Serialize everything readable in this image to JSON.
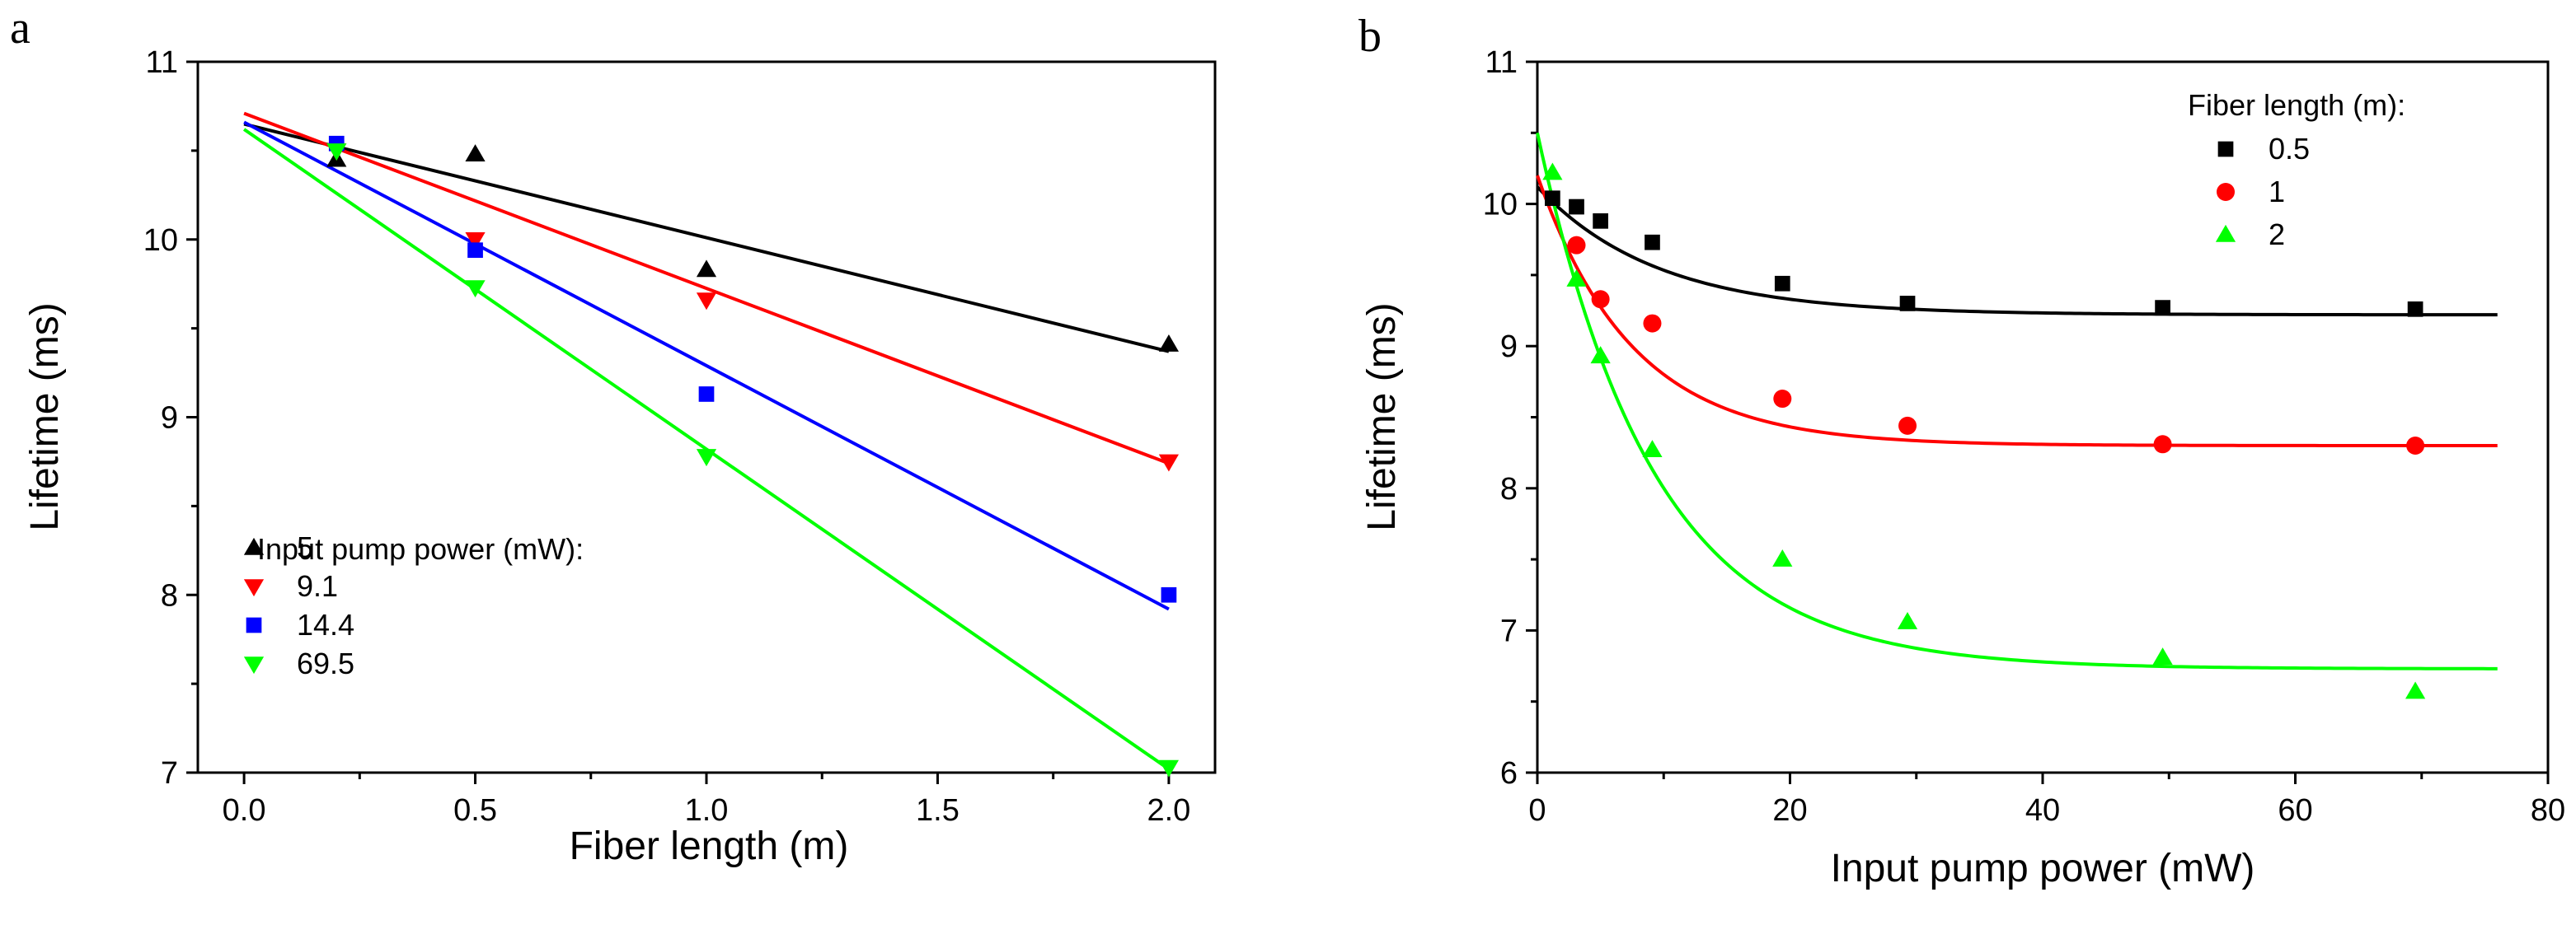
{
  "chart_data": [
    {
      "panel": "a",
      "type": "scatter",
      "title": "",
      "xlabel": "Fiber length (m)",
      "ylabel": "Lifetime (ms)",
      "xlim": [
        -0.1,
        2.1
      ],
      "ylim": [
        7,
        11
      ],
      "xticks": [
        0.0,
        0.5,
        1.0,
        1.5,
        2.0
      ],
      "xtick_labels": [
        "0.0",
        "0.5",
        "1.0",
        "1.5",
        "2.0"
      ],
      "yticks": [
        7,
        8,
        9,
        10,
        11
      ],
      "ytick_labels": [
        "7",
        "8",
        "9",
        "10",
        "11"
      ],
      "legend_title": "Input pump power (mW):",
      "legend_position": "bottom-left",
      "series": [
        {
          "name": "5",
          "color": "#000000",
          "marker": "triangle-up",
          "x": [
            0.2,
            0.5,
            1.0,
            2.0
          ],
          "y": [
            10.45,
            10.48,
            9.83,
            9.41
          ],
          "fit_x": [
            0.0,
            2.0
          ],
          "fit_y": [
            10.65,
            9.37
          ]
        },
        {
          "name": "9.1",
          "color": "#ff0000",
          "marker": "triangle-down",
          "x": [
            0.2,
            0.5,
            1.0,
            2.0
          ],
          "y": [
            10.5,
            10.0,
            9.66,
            8.75
          ],
          "fit_x": [
            0.0,
            2.0
          ],
          "fit_y": [
            10.71,
            8.74
          ]
        },
        {
          "name": "14.4",
          "color": "#0000ff",
          "marker": "square",
          "x": [
            0.2,
            0.5,
            1.0,
            2.0
          ],
          "y": [
            10.54,
            9.94,
            9.13,
            8.0
          ],
          "fit_x": [
            0.0,
            2.0
          ],
          "fit_y": [
            10.66,
            7.92
          ]
        },
        {
          "name": "69.5",
          "color": "#00ff00",
          "marker": "triangle-down",
          "x": [
            0.2,
            0.5,
            1.0,
            2.0
          ],
          "y": [
            10.5,
            9.73,
            8.78,
            7.03
          ],
          "fit_x": [
            0.0,
            2.0
          ],
          "fit_y": [
            10.62,
            7.02
          ]
        }
      ]
    },
    {
      "panel": "b",
      "type": "scatter",
      "title": "",
      "xlabel": "Input pump power (mW)",
      "ylabel": "Lifetime (ms)",
      "xlim": [
        0,
        80
      ],
      "ylim": [
        6,
        11
      ],
      "xticks": [
        0,
        20,
        40,
        60,
        80
      ],
      "xtick_labels": [
        "0",
        "20",
        "40",
        "60",
        "80"
      ],
      "yticks": [
        6,
        7,
        8,
        9,
        10,
        11
      ],
      "ytick_labels": [
        "6",
        "7",
        "8",
        "9",
        "10",
        "11"
      ],
      "legend_title": "Fiber length (m):",
      "legend_position": "top-right",
      "fit_x_range": [
        0,
        76
      ],
      "series": [
        {
          "name": "0.5",
          "color": "#000000",
          "marker": "square",
          "x": [
            1.2,
            3.1,
            5.0,
            9.1,
            19.4,
            29.3,
            49.5,
            69.5
          ],
          "y": [
            10.04,
            9.98,
            9.88,
            9.73,
            9.44,
            9.3,
            9.27,
            9.26
          ],
          "fit": {
            "y0": 9.22,
            "A": 0.9,
            "tau": 9.5
          }
        },
        {
          "name": "1",
          "color": "#ff0000",
          "marker": "circle",
          "x": [
            3.1,
            5.0,
            9.1,
            19.4,
            29.3,
            49.5,
            69.5
          ],
          "y": [
            9.71,
            9.33,
            9.16,
            8.63,
            8.44,
            8.31,
            8.3
          ],
          "fit": {
            "y0": 8.3,
            "A": 1.9,
            "tau": 7.5
          }
        },
        {
          "name": "2",
          "color": "#00ff00",
          "marker": "triangle-up",
          "x": [
            1.2,
            3.1,
            5.0,
            9.1,
            19.4,
            29.3,
            49.5,
            69.5
          ],
          "y": [
            10.22,
            9.47,
            8.93,
            8.27,
            7.5,
            7.06,
            6.81,
            6.57
          ],
          "fit": {
            "y0": 6.73,
            "A": 3.77,
            "tau": 9.2
          }
        }
      ]
    }
  ]
}
